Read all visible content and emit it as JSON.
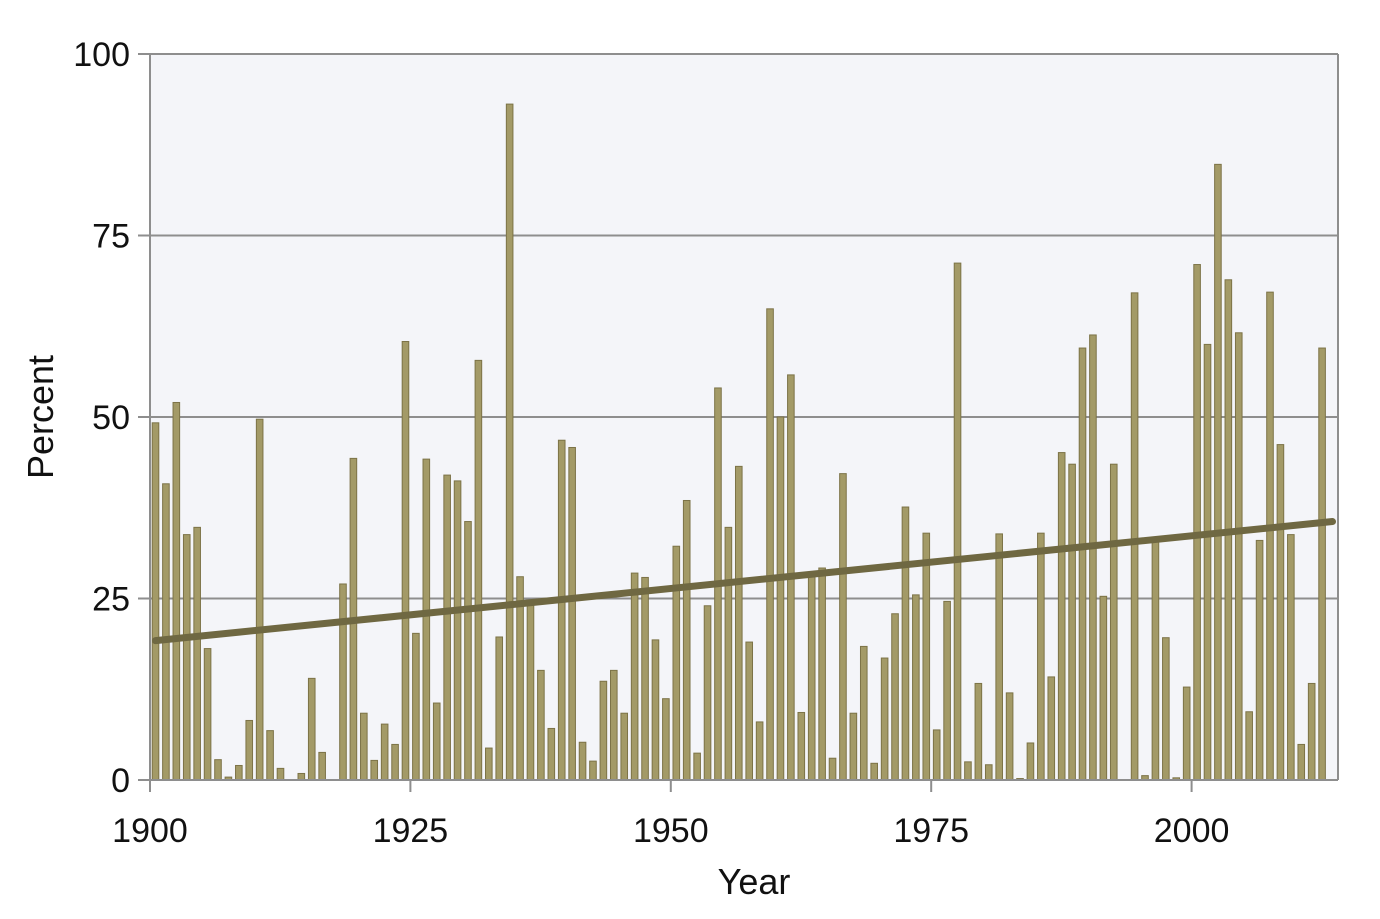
{
  "chart_data": {
    "type": "bar",
    "xlabel": "Year",
    "ylabel": "Percent",
    "xlim": [
      1900,
      2013
    ],
    "ylim": [
      0,
      100
    ],
    "x_ticks": [
      "1900",
      "1925",
      "1950",
      "1975",
      "2000"
    ],
    "y_ticks": [
      "0",
      "25",
      "50",
      "75",
      "100"
    ],
    "grid": "horizontal",
    "colors": {
      "bar_fill": "#A39A67",
      "bar_stroke": "#7C7347",
      "trend": "#6F6842",
      "plot_background": "#F4F5F9",
      "grid": "#8E8E8E",
      "axis": "#8E8E8E"
    },
    "series": [
      {
        "type": "bar",
        "x": [
          1900,
          1901,
          1902,
          1903,
          1904,
          1905,
          1906,
          1907,
          1908,
          1909,
          1910,
          1911,
          1912,
          1913,
          1914,
          1915,
          1916,
          1917,
          1918,
          1919,
          1920,
          1921,
          1922,
          1923,
          1924,
          1925,
          1926,
          1927,
          1928,
          1929,
          1930,
          1931,
          1932,
          1933,
          1934,
          1935,
          1936,
          1937,
          1938,
          1939,
          1940,
          1941,
          1942,
          1943,
          1944,
          1945,
          1946,
          1947,
          1948,
          1949,
          1950,
          1951,
          1952,
          1953,
          1954,
          1955,
          1956,
          1957,
          1958,
          1959,
          1960,
          1961,
          1962,
          1963,
          1964,
          1965,
          1966,
          1967,
          1968,
          1969,
          1970,
          1971,
          1972,
          1973,
          1974,
          1975,
          1976,
          1977,
          1978,
          1979,
          1980,
          1981,
          1982,
          1983,
          1984,
          1985,
          1986,
          1987,
          1988,
          1989,
          1990,
          1991,
          1992,
          1993,
          1994,
          1995,
          1996,
          1997,
          1998,
          1999,
          2000,
          2001,
          2002,
          2003,
          2004,
          2005,
          2006,
          2007,
          2008,
          2009,
          2010,
          2011,
          2012,
          2013
        ],
        "values": [
          49.2,
          40.8,
          52.0,
          33.8,
          34.8,
          18.1,
          2.8,
          0.4,
          2.0,
          8.2,
          49.7,
          6.8,
          1.6,
          0,
          0.9,
          14.0,
          3.8,
          0,
          27.0,
          44.3,
          9.2,
          2.7,
          7.7,
          4.9,
          60.4,
          20.2,
          44.2,
          10.6,
          42.0,
          41.2,
          35.6,
          57.8,
          4.4,
          19.7,
          93.1,
          28.0,
          24.6,
          15.1,
          7.1,
          46.8,
          45.8,
          5.2,
          2.6,
          13.6,
          15.1,
          9.2,
          28.5,
          27.9,
          19.3,
          11.2,
          32.2,
          38.5,
          3.7,
          24.0,
          54.0,
          34.8,
          43.2,
          19.0,
          8.0,
          64.9,
          50.0,
          55.8,
          9.3,
          28.0,
          29.2,
          3.0,
          42.2,
          9.2,
          18.4,
          2.3,
          16.8,
          22.9,
          37.6,
          25.5,
          34.0,
          6.9,
          24.6,
          71.2,
          2.5,
          13.3,
          2.1,
          33.9,
          12.0,
          0.2,
          5.1,
          34.0,
          14.2,
          45.1,
          43.5,
          59.5,
          61.3,
          25.3,
          43.5,
          0,
          67.1,
          0.6,
          33.0,
          19.6,
          0.3,
          12.8,
          71.0,
          60.0,
          84.8,
          68.9,
          61.6,
          9.4,
          33.0,
          67.2,
          46.2,
          33.8,
          4.9,
          13.3,
          59.5,
          0
        ]
      },
      {
        "type": "line",
        "x": [
          1900,
          2013
        ],
        "values": [
          19.2,
          35.6
        ]
      }
    ]
  }
}
